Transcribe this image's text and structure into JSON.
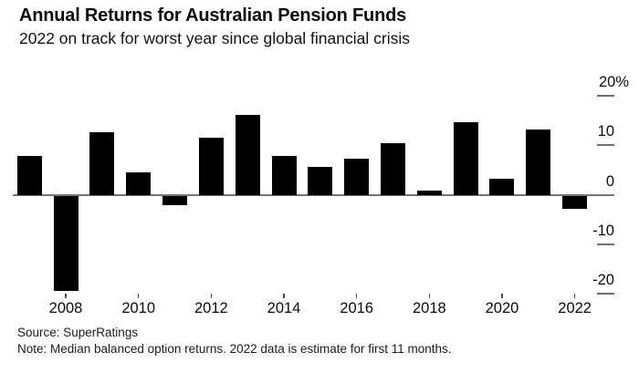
{
  "header": {
    "title": "Annual Returns for Australian Pension Funds",
    "subtitle": "2022 on track for worst year since global financial crisis"
  },
  "chart_data": {
    "type": "bar",
    "title": "Annual Returns for Australian Pension Funds",
    "subtitle": "2022 on track for worst year since global financial crisis",
    "categories": [
      "2007",
      "2008",
      "2009",
      "2010",
      "2011",
      "2012",
      "2013",
      "2014",
      "2015",
      "2016",
      "2017",
      "2018",
      "2019",
      "2020",
      "2021",
      "2022"
    ],
    "values": [
      7.9,
      -19.3,
      12.7,
      4.5,
      -1.9,
      11.6,
      16.2,
      7.9,
      5.6,
      7.2,
      10.5,
      0.8,
      14.7,
      3.2,
      13.2,
      -2.6
    ],
    "unit": "%",
    "ylim": [
      -21.5,
      23.5
    ],
    "y_ticks": [
      {
        "value": 20,
        "label": "20%"
      },
      {
        "value": 10,
        "label": "10"
      },
      {
        "value": 0,
        "label": "0"
      },
      {
        "value": -10,
        "label": "-10"
      },
      {
        "value": -20,
        "label": "-20"
      }
    ],
    "x_tick_labels": [
      "2008",
      "2010",
      "2012",
      "2014",
      "2016",
      "2018",
      "2020",
      "2022"
    ],
    "grid": false,
    "legend": "none",
    "bar_color": "#000000",
    "axis_color": "#757575",
    "background_color": "#ffffff"
  },
  "footer": {
    "source": "Source: SuperRatings",
    "note": "Note: Median balanced option returns. 2022 data is estimate for first 11 months."
  }
}
